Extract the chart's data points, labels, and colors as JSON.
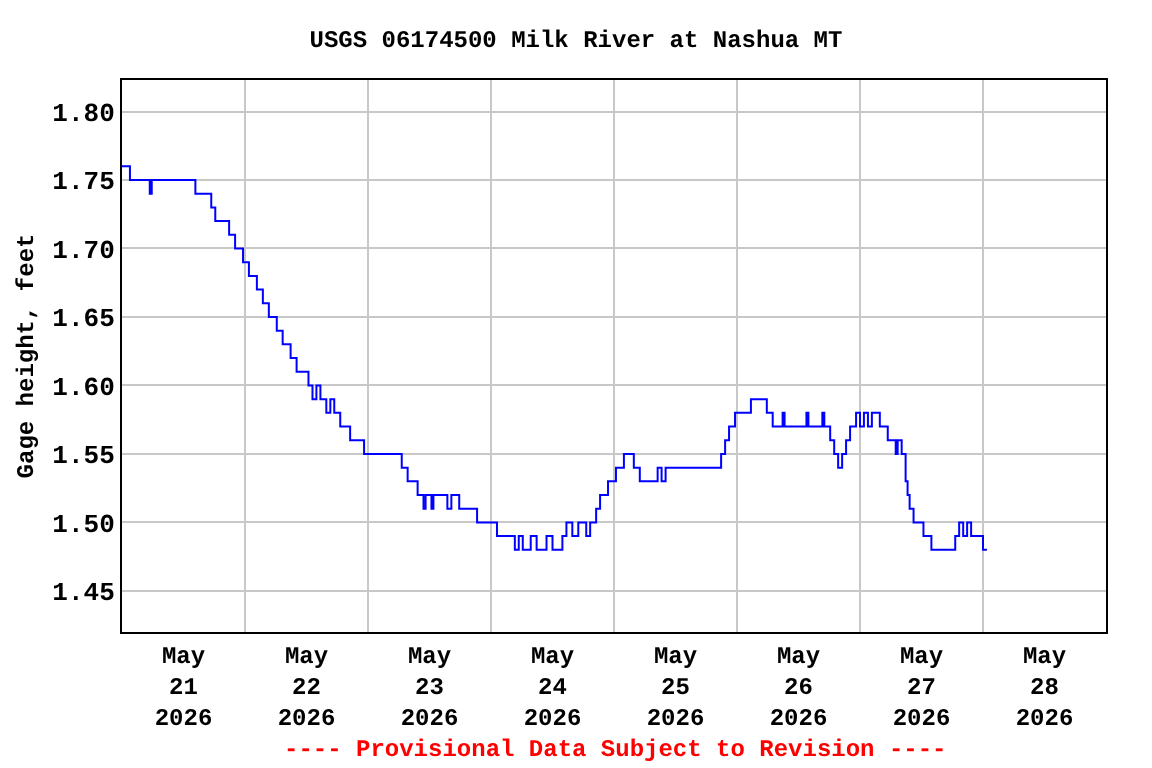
{
  "chart_data": {
    "type": "step",
    "title": "USGS 06174500 Milk River at Nashua MT",
    "ylabel": "Gage height, feet",
    "annotations": [
      "---- Provisional Data Subject to Revision ----"
    ],
    "x": [
      "2026-05-21T00:00",
      "2026-05-21T01:33",
      "2026-05-21T05:25",
      "2026-05-21T05:48",
      "2026-05-21T14:19",
      "2026-05-21T17:25",
      "2026-05-21T18:12",
      "2026-05-21T20:54",
      "2026-05-21T22:04",
      "2026-05-21T23:37",
      "2026-05-22T00:46",
      "2026-05-22T02:19",
      "2026-05-22T03:29",
      "2026-05-22T04:39",
      "2026-05-22T06:12",
      "2026-05-22T07:21",
      "2026-05-22T08:54",
      "2026-05-22T10:04",
      "2026-05-22T12:23",
      "2026-05-22T13:10",
      "2026-05-22T13:56",
      "2026-05-22T14:43",
      "2026-05-22T15:52",
      "2026-05-22T16:39",
      "2026-05-22T17:25",
      "2026-05-22T18:35",
      "2026-05-22T20:31",
      "2026-05-22T23:14",
      "2026-05-23T06:35",
      "2026-05-23T07:44",
      "2026-05-23T09:41",
      "2026-05-23T10:50",
      "2026-05-23T11:14",
      "2026-05-23T12:23",
      "2026-05-23T12:46",
      "2026-05-23T15:29",
      "2026-05-23T16:16",
      "2026-05-23T17:48",
      "2026-05-23T21:17",
      "2026-05-24T01:10",
      "2026-05-24T04:39",
      "2026-05-24T05:25",
      "2026-05-24T06:12",
      "2026-05-24T07:45",
      "2026-05-24T08:54",
      "2026-05-24T10:50",
      "2026-05-24T12:00",
      "2026-05-24T13:56",
      "2026-05-24T14:43",
      "2026-05-24T15:52",
      "2026-05-24T17:02",
      "2026-05-24T18:35",
      "2026-05-24T19:21",
      "2026-05-24T20:31",
      "2026-05-24T21:17",
      "2026-05-24T22:50",
      "2026-05-25T00:23",
      "2026-05-25T01:56",
      "2026-05-25T03:52",
      "2026-05-25T05:02",
      "2026-05-25T08:31",
      "2026-05-25T09:17",
      "2026-05-25T10:04",
      "2026-05-25T20:54",
      "2026-05-25T21:41",
      "2026-05-25T22:27",
      "2026-05-25T23:37",
      "2026-05-26T02:43",
      "2026-05-26T05:49",
      "2026-05-26T06:58",
      "2026-05-26T08:54",
      "2026-05-26T09:17",
      "2026-05-26T13:33",
      "2026-05-26T13:56",
      "2026-05-26T16:39",
      "2026-05-26T17:02",
      "2026-05-26T18:11",
      "2026-05-26T18:58",
      "2026-05-26T19:44",
      "2026-05-26T20:31",
      "2026-05-26T21:17",
      "2026-05-26T22:04",
      "2026-05-26T23:14",
      "2026-05-27T00:00",
      "2026-05-27T00:46",
      "2026-05-27T01:33",
      "2026-05-27T02:19",
      "2026-05-27T03:52",
      "2026-05-27T05:25",
      "2026-05-27T06:58",
      "2026-05-27T07:21",
      "2026-05-27T08:08",
      "2026-05-27T08:54",
      "2026-05-27T09:17",
      "2026-05-27T09:41",
      "2026-05-27T10:27",
      "2026-05-27T12:23",
      "2026-05-27T13:56",
      "2026-05-27T18:35",
      "2026-05-27T19:21",
      "2026-05-27T20:08",
      "2026-05-27T20:54",
      "2026-05-27T21:41",
      "2026-05-28T00:00",
      "2026-05-28T00:46"
    ],
    "series": [
      {
        "color": "#0000ff",
        "values": [
          1.76,
          1.75,
          1.74,
          1.75,
          1.74,
          1.73,
          1.72,
          1.71,
          1.7,
          1.69,
          1.68,
          1.67,
          1.66,
          1.65,
          1.64,
          1.63,
          1.62,
          1.61,
          1.6,
          1.59,
          1.6,
          1.59,
          1.58,
          1.59,
          1.58,
          1.57,
          1.56,
          1.55,
          1.54,
          1.53,
          1.52,
          1.51,
          1.52,
          1.51,
          1.52,
          1.51,
          1.52,
          1.51,
          1.5,
          1.49,
          1.48,
          1.49,
          1.48,
          1.49,
          1.48,
          1.49,
          1.48,
          1.49,
          1.5,
          1.49,
          1.5,
          1.49,
          1.5,
          1.51,
          1.52,
          1.53,
          1.54,
          1.55,
          1.54,
          1.53,
          1.54,
          1.53,
          1.54,
          1.55,
          1.56,
          1.57,
          1.58,
          1.59,
          1.58,
          1.57,
          1.58,
          1.57,
          1.58,
          1.57,
          1.58,
          1.57,
          1.56,
          1.55,
          1.54,
          1.55,
          1.56,
          1.57,
          1.58,
          1.57,
          1.58,
          1.57,
          1.58,
          1.57,
          1.56,
          1.55,
          1.56,
          1.55,
          1.53,
          1.52,
          1.51,
          1.5,
          1.49,
          1.48,
          1.49,
          1.5,
          1.49,
          1.5,
          1.49,
          1.48,
          1.48
        ]
      }
    ],
    "xlim": [
      "2026-05-21T00:00",
      "2026-05-29T00:00"
    ],
    "xticks": [
      {
        "value": "2026-05-21T12:00",
        "label": "May\n21\n2026"
      },
      {
        "value": "2026-05-22T00:00",
        "label": null
      },
      {
        "value": "2026-05-22T12:00",
        "label": "May\n22\n2026"
      },
      {
        "value": "2026-05-23T00:00",
        "label": null
      },
      {
        "value": "2026-05-23T12:00",
        "label": "May\n23\n2026"
      },
      {
        "value": "2026-05-24T00:00",
        "label": null
      },
      {
        "value": "2026-05-24T12:00",
        "label": "May\n24\n2026"
      },
      {
        "value": "2026-05-25T00:00",
        "label": null
      },
      {
        "value": "2026-05-25T12:00",
        "label": "May\n25\n2026"
      },
      {
        "value": "2026-05-26T00:00",
        "label": null
      },
      {
        "value": "2026-05-26T12:00",
        "label": "May\n26\n2026"
      },
      {
        "value": "2026-05-27T00:00",
        "label": null
      },
      {
        "value": "2026-05-27T12:00",
        "label": "May\n27\n2026"
      },
      {
        "value": "2026-05-28T00:00",
        "label": null
      },
      {
        "value": "2026-05-28T12:00",
        "label": "May\n28\n2026"
      }
    ],
    "ylim": [
      1.42,
      1.823
    ],
    "yticks": [
      {
        "value": 1.45,
        "label": "1.45"
      },
      {
        "value": 1.5,
        "label": "1.50"
      },
      {
        "value": 1.55,
        "label": "1.55"
      },
      {
        "value": 1.6,
        "label": "1.60"
      },
      {
        "value": 1.65,
        "label": "1.65"
      },
      {
        "value": 1.7,
        "label": "1.70"
      },
      {
        "value": 1.75,
        "label": "1.75"
      },
      {
        "value": 1.8,
        "label": "1.80"
      }
    ],
    "grid": true
  }
}
